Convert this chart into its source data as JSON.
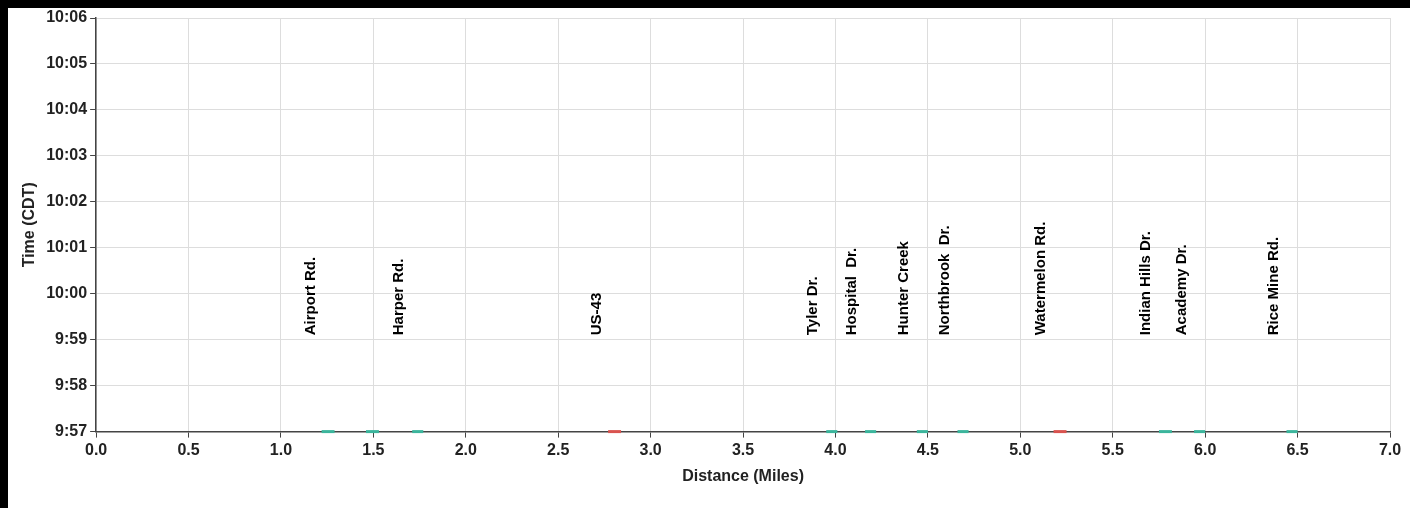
{
  "chart_data": {
    "type": "line",
    "xlabel": "Distance (Miles)",
    "ylabel": "Time (CDT)",
    "xlim": [
      0,
      7
    ],
    "xticks": [
      {
        "value": 0,
        "label": "0.0"
      },
      {
        "value": 0.5,
        "label": "0.5"
      },
      {
        "value": 1,
        "label": "1.0"
      },
      {
        "value": 1.5,
        "label": "1.5"
      },
      {
        "value": 2,
        "label": "2.0"
      },
      {
        "value": 2.5,
        "label": "2.5"
      },
      {
        "value": 3,
        "label": "3.0"
      },
      {
        "value": 3.5,
        "label": "3.5"
      },
      {
        "value": 4,
        "label": "4.0"
      },
      {
        "value": 4.5,
        "label": "4.5"
      },
      {
        "value": 5,
        "label": "5.0"
      },
      {
        "value": 5.5,
        "label": "5.5"
      },
      {
        "value": 6,
        "label": "6.0"
      },
      {
        "value": 6.5,
        "label": "6.5"
      },
      {
        "value": 7,
        "label": "7.0"
      }
    ],
    "ylim": [
      9.95,
      10.1
    ],
    "yticks": [
      {
        "value": 9.95,
        "label": "9:57"
      },
      {
        "value": 9.966667,
        "label": "9:58"
      },
      {
        "value": 9.983333,
        "label": "9:59"
      },
      {
        "value": 10,
        "label": "10:00"
      },
      {
        "value": 10.016667,
        "label": "10:01"
      },
      {
        "value": 10.033333,
        "label": "10:02"
      },
      {
        "value": 10.05,
        "label": "10:03"
      },
      {
        "value": 10.066667,
        "label": "10:04"
      },
      {
        "value": 10.083333,
        "label": "10:05"
      },
      {
        "value": 10.1,
        "label": "10:06"
      }
    ],
    "grid": true,
    "legend": false,
    "marker": "none",
    "line_style": "solid",
    "series": [
      {
        "type": "line",
        "color": "#3bb59c",
        "x": [
          1.22,
          1.29
        ],
        "values": [
          9.95,
          9.95
        ]
      },
      {
        "type": "line",
        "color": "#3bb59c",
        "x": [
          1.46,
          1.53
        ],
        "values": [
          9.95,
          9.95
        ]
      },
      {
        "type": "line",
        "color": "#3bb59c",
        "x": [
          1.71,
          1.77
        ],
        "values": [
          9.95,
          9.95
        ]
      },
      {
        "type": "line",
        "color": "#d9534f",
        "x": [
          2.77,
          2.84
        ],
        "values": [
          9.95,
          9.95
        ]
      },
      {
        "type": "line",
        "color": "#3bb59c",
        "x": [
          3.95,
          4.01
        ],
        "values": [
          9.95,
          9.95
        ]
      },
      {
        "type": "line",
        "color": "#3bb59c",
        "x": [
          4.16,
          4.22
        ],
        "values": [
          9.95,
          9.95
        ]
      },
      {
        "type": "line",
        "color": "#3bb59c",
        "x": [
          4.44,
          4.5
        ],
        "values": [
          9.95,
          9.95
        ]
      },
      {
        "type": "line",
        "color": "#3bb59c",
        "x": [
          4.66,
          4.72
        ],
        "values": [
          9.95,
          9.95
        ]
      },
      {
        "type": "line",
        "color": "#d9534f",
        "x": [
          5.18,
          5.25
        ],
        "values": [
          9.95,
          9.95
        ]
      },
      {
        "type": "line",
        "color": "#3bb59c",
        "x": [
          5.75,
          5.82
        ],
        "values": [
          9.95,
          9.95
        ]
      },
      {
        "type": "line",
        "color": "#3bb59c",
        "x": [
          5.94,
          6.0
        ],
        "values": [
          9.95,
          9.95
        ]
      },
      {
        "type": "line",
        "color": "#3bb59c",
        "x": [
          6.44,
          6.5
        ],
        "values": [
          9.95,
          9.95
        ]
      }
    ],
    "annotations": [
      "Airport Rd.",
      "Harper Rd.",
      "US-43",
      "Tyler Dr.",
      "Hospital  Dr.",
      "Hunter Creek",
      "Northbrook  Dr.",
      "Watermelon Rd.",
      "Indian Hills Dr.",
      "Academy Dr.",
      "Rice Mine Rd."
    ]
  }
}
